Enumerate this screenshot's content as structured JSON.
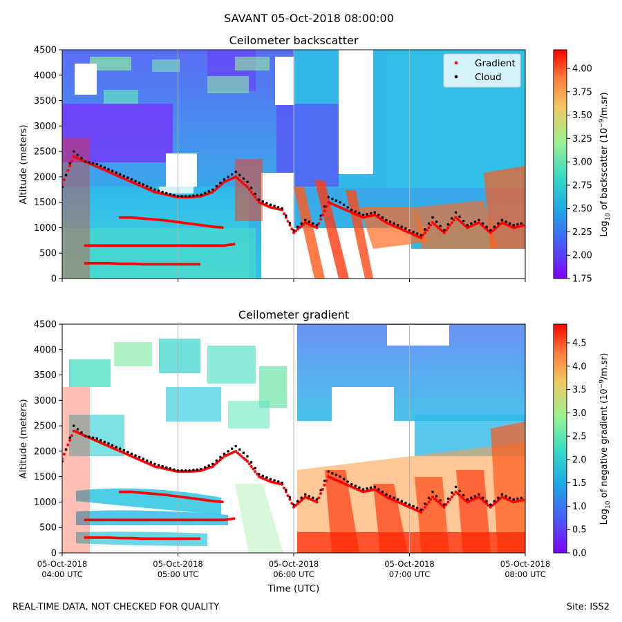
{
  "figure": {
    "title": "SAVANT 05-Oct-2018 08:00:00",
    "footer_left": "REAL-TIME DATA, NOT CHECKED FOR QUALITY",
    "footer_right": "Site: ISS2"
  },
  "chart_data": [
    {
      "type": "heatmap",
      "title": "Ceilometer backscatter",
      "ylabel": "Altitude (meters)",
      "xlabel": "",
      "ylim": [
        0,
        4500
      ],
      "yticks": [
        0,
        500,
        1000,
        1500,
        2000,
        2500,
        3000,
        3500,
        4000,
        4500
      ],
      "xlim": [
        "05-Oct-2018 04:00 UTC",
        "05-Oct-2018 08:00 UTC"
      ],
      "colormap": "rainbow",
      "colorbar": {
        "label_pre": "Log",
        "label_sub": "10",
        "label_mid": " of backscatter (10",
        "label_sup": "−9",
        "label_post": "/m.sr)",
        "range": [
          1.75,
          4.2
        ],
        "ticks": [
          "1.75",
          "2.00",
          "2.25",
          "2.50",
          "2.75",
          "3.00",
          "3.25",
          "3.50",
          "3.75",
          "4.00"
        ]
      },
      "legend": {
        "placement": "top-right",
        "entries": [
          {
            "name": "Gradient",
            "color": "#ff0000"
          },
          {
            "name": "Cloud",
            "color": "#000000"
          }
        ]
      }
    },
    {
      "type": "heatmap",
      "title": "Ceilometer gradient",
      "ylabel": "Altitude (meters)",
      "xlabel": "Time (UTC)",
      "ylim": [
        0,
        4500
      ],
      "yticks": [
        0,
        500,
        1000,
        1500,
        2000,
        2500,
        3000,
        3500,
        4000,
        4500
      ],
      "xticks": [
        {
          "line1": "05-Oct-2018",
          "line2": "04:00 UTC"
        },
        {
          "line1": "05-Oct-2018",
          "line2": "05:00 UTC"
        },
        {
          "line1": "05-Oct-2018",
          "line2": "06:00 UTC"
        },
        {
          "line1": "05-Oct-2018",
          "line2": "07:00 UTC"
        },
        {
          "line1": "05-Oct-2018",
          "line2": "08:00 UTC"
        }
      ],
      "colormap": "rainbow",
      "colorbar": {
        "label_pre": "Log",
        "label_sub": "10",
        "label_mid": " of negative gradient (10",
        "label_sup": "−9",
        "label_post": "/m.sr)",
        "range": [
          0.0,
          4.9
        ],
        "ticks": [
          "0.0",
          "0.5",
          "1.0",
          "1.5",
          "2.0",
          "2.5",
          "3.0",
          "3.5",
          "4.0",
          "4.5"
        ]
      }
    }
  ],
  "series": {
    "time_hours": [
      4.0,
      4.1,
      4.2,
      4.3,
      4.4,
      4.5,
      4.6,
      4.7,
      4.8,
      4.9,
      5.0,
      5.1,
      5.2,
      5.3,
      5.4,
      5.5,
      5.6,
      5.7,
      5.8,
      5.9,
      6.0,
      6.1,
      6.2,
      6.3,
      6.4,
      6.5,
      6.6,
      6.7,
      6.8,
      6.9,
      7.0,
      7.1,
      7.2,
      7.3,
      7.4,
      7.5,
      7.6,
      7.7,
      7.8,
      7.9,
      8.0
    ],
    "gradient_layer_main_m": [
      1850,
      2400,
      2300,
      2200,
      2100,
      2000,
      1900,
      1800,
      1700,
      1650,
      1600,
      1600,
      1620,
      1700,
      1900,
      2000,
      1800,
      1500,
      1400,
      1350,
      900,
      1100,
      1000,
      1500,
      1400,
      1300,
      1200,
      1250,
      1100,
      1000,
      900,
      800,
      1100,
      900,
      1200,
      1000,
      1100,
      900,
      1100,
      1000,
      1050
    ],
    "cloud_points_m": [
      1800,
      2500,
      2300,
      2250,
      2150,
      2050,
      1950,
      1850,
      1750,
      1680,
      1620,
      1620,
      1650,
      1750,
      1950,
      2100,
      1900,
      1550,
      1450,
      1380,
      950,
      1150,
      1050,
      1600,
      1500,
      1350,
      1250,
      1300,
      1150,
      1050,
      950,
      850,
      1200,
      950,
      1300,
      1050,
      1150,
      950,
      1150,
      1050,
      1100
    ],
    "gradient_layer_low1_m": [
      700,
      null,
      650,
      650,
      650,
      650,
      650,
      650,
      650,
      650,
      650,
      650,
      650,
      650,
      650,
      680
    ],
    "gradient_layer_low2_m": [
      320,
      null,
      300,
      300,
      300,
      290,
      290,
      280,
      280,
      280,
      280,
      280,
      280
    ],
    "gradient_layer_mid_m": [
      null,
      null,
      null,
      null,
      null,
      1200,
      1200,
      1180,
      1160,
      1140,
      1110,
      1080,
      1050,
      1020,
      1000
    ]
  }
}
